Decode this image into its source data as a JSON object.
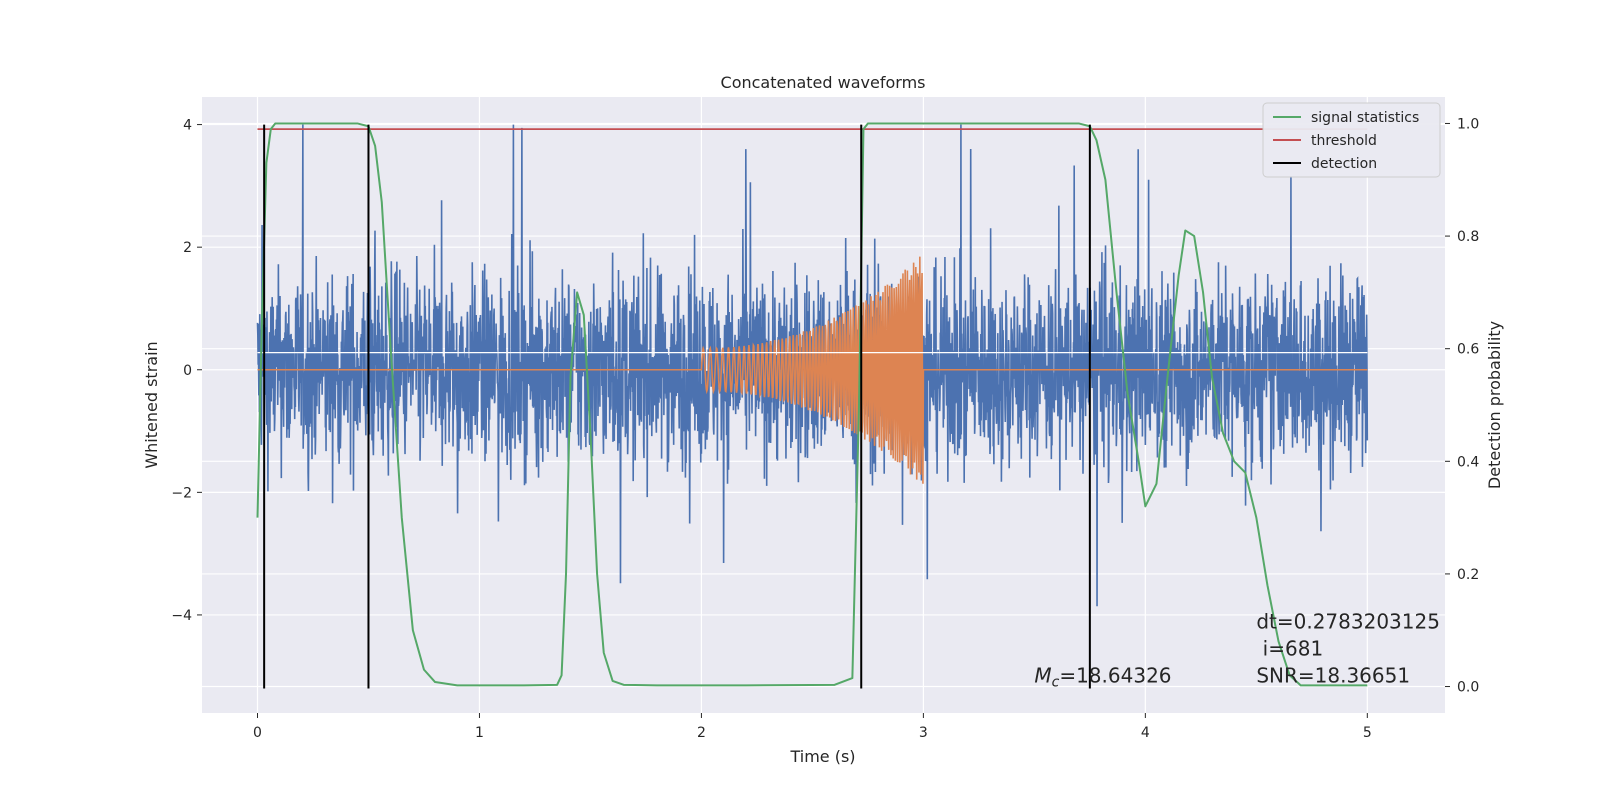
{
  "chart_data": {
    "type": "line",
    "title": "Concatenated waveforms",
    "xlabel": "Time (s)",
    "ylabel": "Whitened strain",
    "y2label": "Detection probability",
    "xlim": [
      -0.25,
      5.35
    ],
    "ylim": [
      -5.6,
      4.45
    ],
    "y2lim": [
      -0.047,
      1.047
    ],
    "xticks": [
      0,
      1,
      2,
      3,
      4,
      5
    ],
    "yticks": [
      -4,
      -2,
      0,
      2,
      4
    ],
    "y2ticks": [
      0.0,
      0.2,
      0.4,
      0.6,
      0.8,
      1.0
    ],
    "grid": true,
    "legend_position": "top-right",
    "colors": {
      "strain": "#4c72b0",
      "template": "#dd8452",
      "statistic": "#55a868",
      "threshold": "#c44e52",
      "detection": "#000000",
      "background": "#eaeaf2",
      "grid": "#ffffff"
    },
    "series": [
      {
        "name": "",
        "axis": "left",
        "kind": "strain",
        "x_range": [
          0,
          5
        ],
        "envelope": 1.8,
        "y_min_observed": -5.2,
        "y_max_observed": 4.0
      },
      {
        "name": "",
        "axis": "left",
        "kind": "template",
        "x_range": [
          2,
          3
        ],
        "amplitude_start": 0.35,
        "amplitude_end": 1.9,
        "frequency_start_hz": 30,
        "frequency_end_hz": 110
      },
      {
        "name": "signal statistics",
        "axis": "right",
        "x": [
          0.0,
          0.02,
          0.04,
          0.06,
          0.08,
          0.1,
          0.3,
          0.45,
          0.5,
          0.53,
          0.56,
          0.6,
          0.65,
          0.7,
          0.75,
          0.8,
          0.9,
          1.0,
          1.2,
          1.35,
          1.37,
          1.39,
          1.41,
          1.44,
          1.47,
          1.5,
          1.53,
          1.56,
          1.6,
          1.65,
          1.8,
          2.2,
          2.6,
          2.68,
          2.71,
          2.73,
          2.75,
          2.8,
          3.0,
          3.5,
          3.7,
          3.75,
          3.78,
          3.82,
          3.87,
          3.92,
          3.97,
          4.0,
          4.05,
          4.1,
          4.15,
          4.18,
          4.22,
          4.26,
          4.3,
          4.35,
          4.4,
          4.45,
          4.5,
          4.55,
          4.6,
          4.65,
          4.7,
          5.0
        ],
        "y": [
          0.3,
          0.65,
          0.93,
          0.99,
          1.0,
          1.0,
          1.0,
          1.0,
          0.995,
          0.96,
          0.86,
          0.6,
          0.3,
          0.1,
          0.03,
          0.008,
          0.002,
          0.002,
          0.002,
          0.003,
          0.02,
          0.2,
          0.55,
          0.7,
          0.66,
          0.45,
          0.2,
          0.06,
          0.01,
          0.003,
          0.002,
          0.002,
          0.003,
          0.015,
          0.5,
          0.99,
          1.0,
          1.0,
          1.0,
          1.0,
          1.0,
          0.995,
          0.97,
          0.9,
          0.7,
          0.52,
          0.4,
          0.32,
          0.36,
          0.55,
          0.73,
          0.81,
          0.8,
          0.7,
          0.55,
          0.45,
          0.4,
          0.38,
          0.3,
          0.18,
          0.08,
          0.02,
          0.002,
          0.002
        ]
      },
      {
        "name": "threshold",
        "axis": "right",
        "x": [
          0,
          5
        ],
        "y": [
          0.99,
          0.99
        ]
      },
      {
        "name": "detection",
        "axis": "left",
        "x": [
          0.03,
          0.5,
          2.72,
          3.75
        ],
        "y_range": [
          -5.2,
          4.0
        ]
      }
    ],
    "annotations": [
      {
        "text": "dt=0.2783203125\n i=681\nSNR=18.36651",
        "x": 4.5,
        "y": -5.1
      },
      {
        "prefix": "M",
        "subscript": "c",
        "text": "=18.64326",
        "x": 3.5,
        "y": -5.1
      }
    ]
  }
}
